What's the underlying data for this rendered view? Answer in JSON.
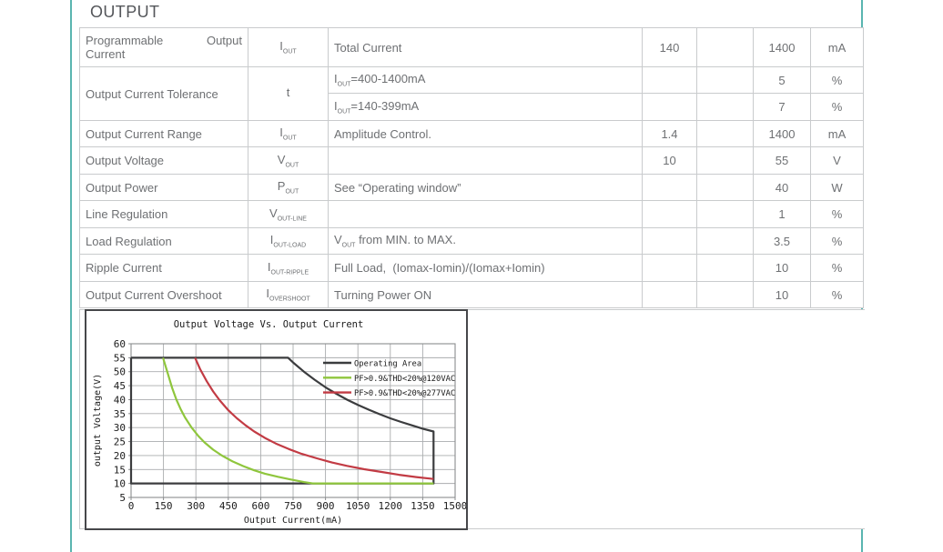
{
  "section": {
    "title": "OUTPUT"
  },
  "colors": {
    "frame_teal": "#5ab5b0",
    "table_border": "#c9cbcd",
    "table_text": "#6e7073",
    "heading_text": "#54565a",
    "chart_operating": "#3b3c3e",
    "chart_green": "#8fc63d",
    "chart_red": "#c23b44",
    "chart_grid": "#aaacae",
    "chart_frame": "#8a8c8e"
  },
  "table": {
    "rows": [
      {
        "param": "Programmable Output Current",
        "sym": "I",
        "sym_sub": "OUT",
        "cond": "Total Current",
        "min": "140",
        "typ": "",
        "max": "1400",
        "unit": "mA"
      },
      {
        "param": "Output Current Tolerance",
        "sym": "t",
        "sym_sub": "",
        "subrows": [
          {
            "cond_pre": "I",
            "cond_sub": "OUT",
            "cond_post": "=400-1400mA",
            "min": "",
            "typ": "",
            "max": "5",
            "unit": "%"
          },
          {
            "cond_pre": "I",
            "cond_sub": "OUT",
            "cond_post": "=140-399mA",
            "min": "",
            "typ": "",
            "max": "7",
            "unit": "%"
          }
        ]
      },
      {
        "param": "Output Current Range",
        "sym": "I",
        "sym_sub": "OUT",
        "cond": "Amplitude Control.",
        "min": "1.4",
        "typ": "",
        "max": "1400",
        "unit": "mA"
      },
      {
        "param": "Output Voltage",
        "sym": "V",
        "sym_sub": "OUT",
        "cond": "",
        "min": "10",
        "typ": "",
        "max": "55",
        "unit": "V"
      },
      {
        "param": "Output Power",
        "sym": "P",
        "sym_sub": "OUT",
        "cond": "See “Operating window”",
        "min": "",
        "typ": "",
        "max": "40",
        "unit": "W"
      },
      {
        "param": "Line Regulation",
        "sym": "V",
        "sym_sub": "OUT-LINE",
        "cond": "",
        "min": "",
        "typ": "",
        "max": "1",
        "unit": "%"
      },
      {
        "param": "Load Regulation",
        "sym": "I",
        "sym_sub": "OUT-LOAD",
        "cond_pre": "V",
        "cond_sub": "OUT",
        "cond_post": " from MIN. to MAX.",
        "min": "",
        "typ": "",
        "max": "3.5",
        "unit": "%"
      },
      {
        "param": "Ripple Current",
        "sym": "I",
        "sym_sub": "OUT-RIPPLE",
        "cond": "Full Load,  (Iomax-Iomin)/(Iomax+Iomin)",
        "min": "",
        "typ": "",
        "max": "10",
        "unit": "%"
      },
      {
        "param": "Output Current Overshoot",
        "sym": "I",
        "sym_sub": "OVERSHOOT",
        "cond": "Turning Power ON",
        "min": "",
        "typ": "",
        "max": "10",
        "unit": "%"
      }
    ]
  },
  "chart_data": {
    "type": "line",
    "title": "Output Voltage Vs. Output Current",
    "xlabel": "Output Current(mA)",
    "ylabel": "output Voltage(V)",
    "xlim": [
      0,
      1500
    ],
    "ylim": [
      5,
      60
    ],
    "xtick_step": 150,
    "ytick_step": 5,
    "grid": true,
    "legend_position": "top-right",
    "series": [
      {
        "name": "Operating Area",
        "color": "#3b3c3e",
        "points": [
          [
            0,
            55
          ],
          [
            727,
            55
          ],
          [
            750,
            53.3
          ],
          [
            800,
            50
          ],
          [
            850,
            47.1
          ],
          [
            900,
            44.4
          ],
          [
            950,
            42.1
          ],
          [
            1000,
            40
          ],
          [
            1050,
            38.1
          ],
          [
            1100,
            36.4
          ],
          [
            1150,
            34.8
          ],
          [
            1200,
            33.3
          ],
          [
            1250,
            32
          ],
          [
            1300,
            30.8
          ],
          [
            1350,
            29.6
          ],
          [
            1400,
            28.6
          ],
          [
            1400,
            10
          ],
          [
            0,
            10
          ],
          [
            0,
            55
          ]
        ]
      },
      {
        "name": "PF>0.9&THD<20%@120VAC",
        "color": "#8fc63d",
        "points": [
          [
            148,
            55
          ],
          [
            170,
            49.4
          ],
          [
            190,
            44.2
          ],
          [
            210,
            40
          ],
          [
            230,
            36.5
          ],
          [
            250,
            33.6
          ],
          [
            280,
            30
          ],
          [
            310,
            27.1
          ],
          [
            340,
            24.7
          ],
          [
            380,
            22.1
          ],
          [
            420,
            20
          ],
          [
            470,
            17.9
          ],
          [
            520,
            16.2
          ],
          [
            570,
            14.7
          ],
          [
            620,
            13.5
          ],
          [
            680,
            12.4
          ],
          [
            740,
            11.4
          ],
          [
            800,
            10.5
          ],
          [
            840,
            10
          ],
          [
            1400,
            10
          ]
        ]
      },
      {
        "name": "PF>0.9&THD<20%@277VAC",
        "color": "#c23b44",
        "points": [
          [
            296,
            55
          ],
          [
            320,
            50.9
          ],
          [
            350,
            46.6
          ],
          [
            380,
            42.9
          ],
          [
            410,
            39.8
          ],
          [
            450,
            36.2
          ],
          [
            490,
            33.3
          ],
          [
            530,
            30.8
          ],
          [
            570,
            28.6
          ],
          [
            620,
            26.3
          ],
          [
            670,
            24.3
          ],
          [
            730,
            22.3
          ],
          [
            790,
            20.6
          ],
          [
            860,
            19
          ],
          [
            930,
            17.5
          ],
          [
            1000,
            16.3
          ],
          [
            1080,
            15.1
          ],
          [
            1160,
            14.1
          ],
          [
            1240,
            13.1
          ],
          [
            1320,
            12.3
          ],
          [
            1400,
            11.6
          ]
        ]
      }
    ]
  }
}
